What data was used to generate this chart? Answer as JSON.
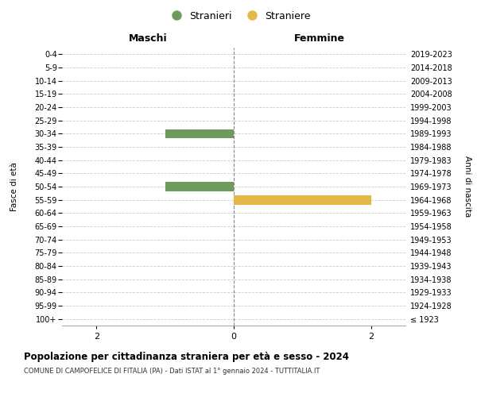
{
  "age_groups": [
    "100+",
    "95-99",
    "90-94",
    "85-89",
    "80-84",
    "75-79",
    "70-74",
    "65-69",
    "60-64",
    "55-59",
    "50-54",
    "45-49",
    "40-44",
    "35-39",
    "30-34",
    "25-29",
    "20-24",
    "15-19",
    "10-14",
    "5-9",
    "0-4"
  ],
  "birth_years": [
    "≤ 1923",
    "1924-1928",
    "1929-1933",
    "1934-1938",
    "1939-1943",
    "1944-1948",
    "1949-1953",
    "1954-1958",
    "1959-1963",
    "1964-1968",
    "1969-1973",
    "1974-1978",
    "1979-1983",
    "1984-1988",
    "1989-1993",
    "1994-1998",
    "1999-2003",
    "2004-2008",
    "2009-2013",
    "2014-2018",
    "2019-2023"
  ],
  "males": [
    0,
    0,
    0,
    0,
    0,
    0,
    0,
    0,
    0,
    0,
    1,
    0,
    0,
    0,
    1,
    0,
    0,
    0,
    0,
    0,
    0
  ],
  "females": [
    0,
    0,
    0,
    0,
    0,
    0,
    0,
    0,
    0,
    2,
    0,
    0,
    0,
    0,
    0,
    0,
    0,
    0,
    0,
    0,
    0
  ],
  "male_color": "#6d9b5e",
  "female_color": "#e6b84a",
  "xlim": 2.5,
  "title": "Popolazione per cittadinanza straniera per età e sesso - 2024",
  "subtitle": "COMUNE DI CAMPOFELICE DI FITALIA (PA) - Dati ISTAT al 1° gennaio 2024 - TUTTITALIA.IT",
  "legend_male": "Stranieri",
  "legend_female": "Straniere",
  "left_header": "Maschi",
  "right_header": "Femmine",
  "left_yaxis_label": "Fasce di età",
  "right_yaxis_label": "Anni di nascita",
  "bg_color": "#ffffff",
  "grid_color": "#cccccc",
  "bar_height": 0.7
}
